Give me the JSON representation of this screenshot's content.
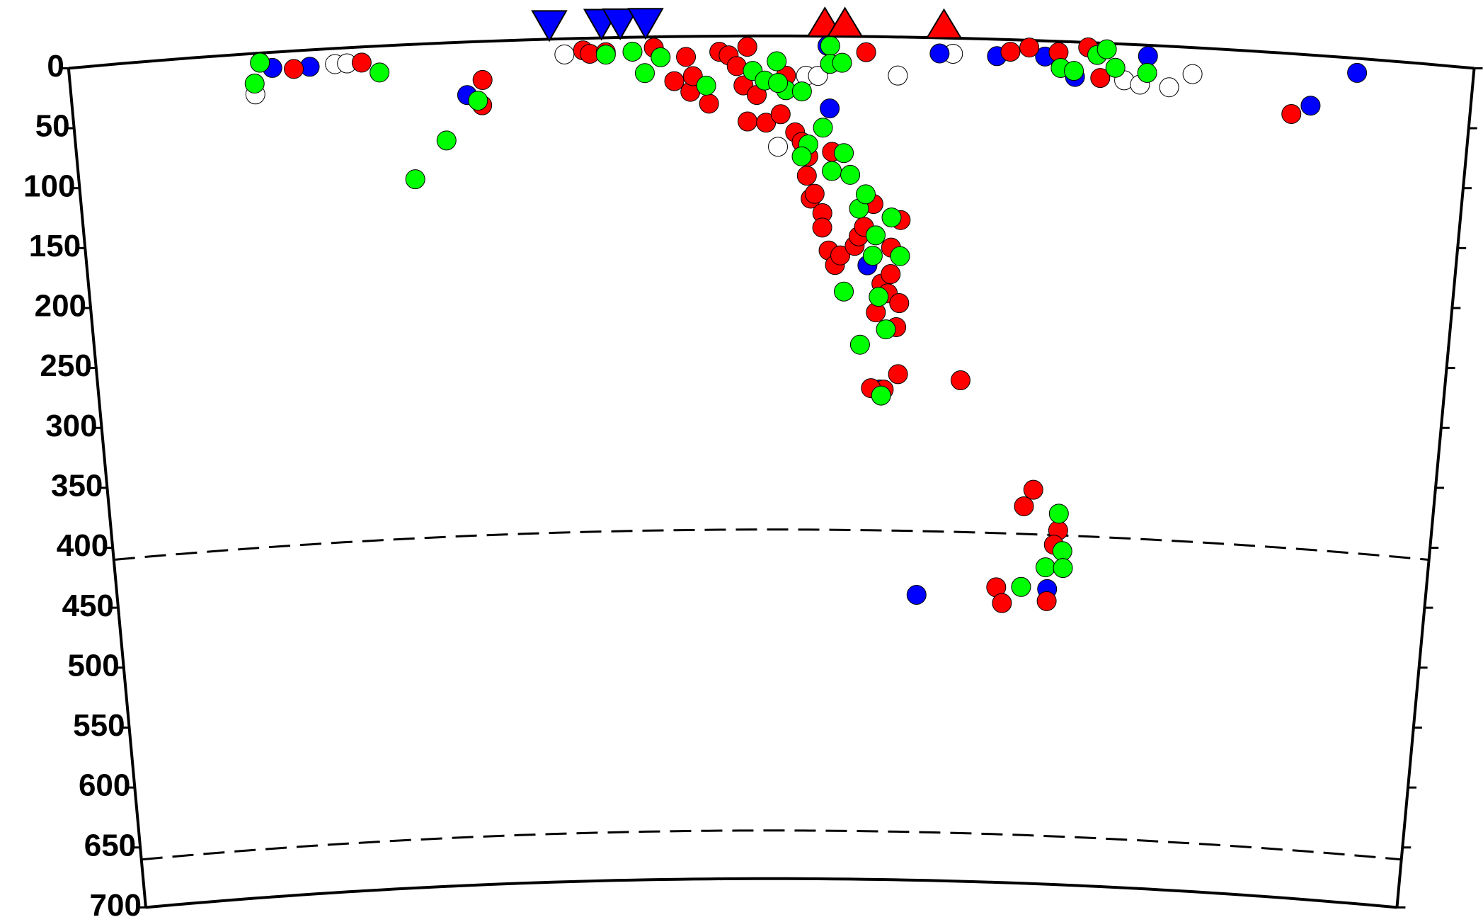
{
  "chart_data": {
    "type": "scatter",
    "xlim": [
      -5.26,
      5.26
    ],
    "ylim": [
      0,
      700
    ],
    "yticks": [
      0,
      50,
      100,
      150,
      200,
      250,
      300,
      350,
      400,
      450,
      500,
      550,
      600,
      650,
      700
    ],
    "depth_lines": [
      410,
      660
    ],
    "series": [
      {
        "color": "#ffffff",
        "x": [
          -3.88,
          -3.27,
          -3.18,
          -1.55,
          0.05,
          0.26,
          0.35,
          0.95,
          1.36,
          2.65,
          2.77,
          2.99,
          3.16
        ],
        "values": [
          34,
          13,
          13,
          13,
          92,
          33,
          33,
          32,
          13,
          30,
          33,
          34,
          22
        ]
      },
      {
        "color": "#0000ff",
        "x": [
          -3.74,
          -3.46,
          -2.29,
          0.44,
          0.42,
          0.74,
          0.85,
          1.26,
          1.69,
          2.05,
          2.28,
          2.82,
          1.17,
          2.22,
          4.06,
          4.39
        ],
        "values": [
          13,
          14,
          44,
          60,
          8,
          190,
          293,
          13,
          14,
          13,
          29,
          9,
          463,
          455,
          42,
          12
        ]
      },
      {
        "color": "#ff0000",
        "x": [
          -3.58,
          -3.07,
          -2.17,
          -2.18,
          -1.41,
          -1.36,
          -1.24,
          -0.88,
          -0.73,
          -0.61,
          -0.59,
          -0.47,
          -0.39,
          -0.32,
          -0.18,
          -0.26,
          -0.21,
          -0.11,
          -0.18,
          -0.04,
          0.07,
          0.11,
          0.18,
          0.23,
          0.28,
          0.27,
          0.3,
          0.39,
          0.44,
          0.49,
          0.53,
          0.64,
          0.67,
          0.71,
          0.78,
          0.99,
          0.85,
          0.81,
          0.9,
          0.92,
          0.97,
          0.99,
          0.92,
          0.99,
          0.88,
          0.78,
          1.48,
          1.79,
          1.93,
          2.15,
          2.37,
          2.47,
          2.08,
          2.01,
          2.29,
          2.26,
          1.81,
          1.86,
          2.22,
          3.92,
          0.39,
          0.33,
          0.46,
          -0.64,
          0.71
        ],
        "values": [
          15,
          13,
          32,
          53,
          10,
          13,
          12,
          9,
          37,
          46,
          33,
          56,
          13,
          16,
          9,
          25,
          41,
          49,
          71,
          72,
          65,
          33,
          80,
          88,
          100,
          116,
          135,
          147,
          178,
          190,
          182,
          174,
          166,
          158,
          139,
          152,
          205,
          229,
          213,
          197,
          241,
          221,
          175,
          280,
          293,
          292,
          284,
          10,
          6,
          9,
          4,
          29,
          373,
          387,
          406,
          418,
          455,
          468,
          465,
          50,
          159,
          131,
          96,
          17,
          13
        ]
      },
      {
        "color": "#00ff00",
        "x": [
          -3.83,
          -3.88,
          -2.94,
          -2.21,
          -2.46,
          -2.71,
          -1.24,
          -1.04,
          -0.95,
          -0.83,
          -0.49,
          -0.14,
          -0.05,
          0.04,
          0.11,
          0.23,
          0.05,
          0.44,
          0.44,
          0.53,
          0.39,
          0.28,
          0.23,
          0.46,
          0.55,
          0.6,
          0.67,
          0.72,
          0.8,
          0.78,
          0.92,
          0.99,
          0.56,
          0.83,
          0.89,
          0.69,
          0.86,
          2.29,
          2.33,
          2.2,
          2.34,
          2.01,
          2.17,
          2.27,
          2.44,
          2.51,
          2.58,
          2.82
        ],
        "values": [
          8,
          25,
          22,
          49,
          81,
          112,
          14,
          12,
          30,
          17,
          41,
          29,
          37,
          21,
          45,
          46,
          39,
          8,
          23,
          22,
          76,
          90,
          100,
          112,
          97,
          115,
          143,
          131,
          165,
          182,
          150,
          182,
          212,
          216,
          243,
          256,
          298,
          392,
          423,
          437,
          437,
          454,
          22,
          24,
          10,
          5,
          20,
          23
        ]
      }
    ],
    "stations": {
      "color": "#0000ff",
      "x": [
        -1.66,
        -1.27,
        -1.13,
        -0.94
      ]
    },
    "volcanoes": {
      "color": "#ff0000",
      "x": [
        0.4,
        0.55,
        1.29
      ]
    }
  }
}
